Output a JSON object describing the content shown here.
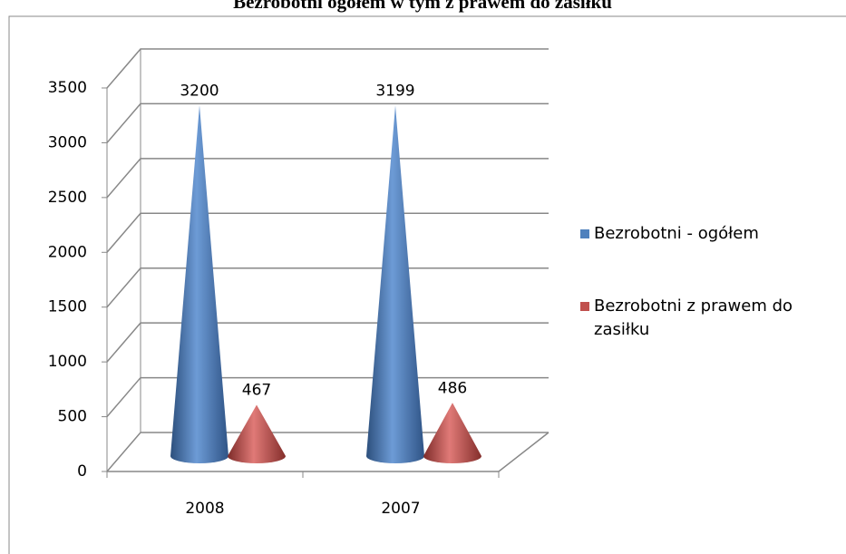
{
  "chart_data": {
    "type": "cone",
    "title": "Bezrobotni ogółem w tym z prawem do zasiłku",
    "categories": [
      "2008",
      "2007"
    ],
    "series": [
      {
        "name": "Bezrobotni - ogółem",
        "color": "#4f81bd",
        "values": [
          3200,
          3199
        ]
      },
      {
        "name": "Bezrobotni z prawem do zasiłku",
        "color": "#c0504d",
        "values": [
          467,
          486
        ]
      }
    ],
    "ylim": [
      0,
      3500
    ],
    "yticks": [
      0,
      500,
      1000,
      1500,
      2000,
      2500,
      3000,
      3500
    ],
    "grid": true,
    "legend": "right"
  }
}
